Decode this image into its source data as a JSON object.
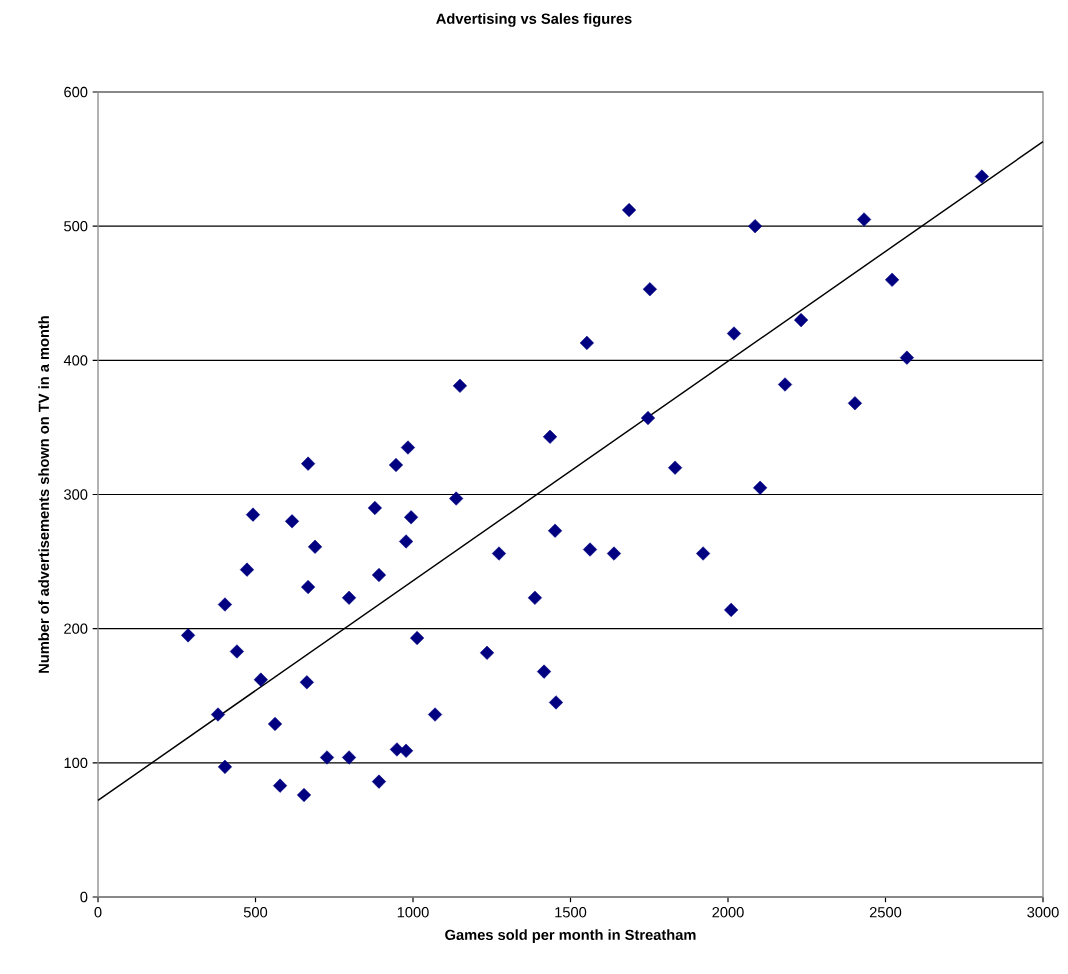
{
  "chart_data": {
    "type": "scatter",
    "title": "Advertising vs Sales figures",
    "xlabel": "Games sold per month in Streatham",
    "ylabel": "Number of advertisements shown on TV in a month",
    "xlim": [
      0,
      3000
    ],
    "xticks": [
      0,
      500,
      1000,
      1500,
      2000,
      2500,
      3000
    ],
    "ylim": [
      0,
      600
    ],
    "yticks": [
      0,
      100,
      200,
      300,
      400,
      500,
      600
    ],
    "grid": "y",
    "series": [
      {
        "color": "#000080",
        "marker": "diamond",
        "x": [
          286,
          403,
          492,
          473,
          441,
          517,
          381,
          403,
          562,
          578,
          654,
          663,
          667,
          616,
          689,
          727,
          797,
          797,
          879,
          892,
          892,
          978,
          994,
          949,
          978,
          1013,
          1070,
          1137,
          1273,
          1235,
          1387,
          1451,
          1416,
          1454,
          667,
          946,
          984,
          1149,
          1435,
          1686,
          2086,
          2432,
          2806,
          1752,
          2521,
          1552,
          2019,
          2232,
          2568,
          2181,
          2403,
          1746,
          1832,
          2102,
          1562,
          1638,
          1921,
          2010
        ],
        "values": [
          195,
          218,
          285,
          244,
          183,
          162,
          136,
          97,
          129,
          83,
          76,
          160,
          231,
          280,
          261,
          104,
          223,
          104,
          290,
          240,
          86,
          265,
          283,
          110,
          109,
          193,
          136,
          297,
          256,
          182,
          223,
          273,
          168,
          145,
          323,
          322,
          335,
          381,
          343,
          512,
          500,
          505,
          537,
          453,
          460,
          413,
          420,
          430,
          402,
          382,
          368,
          357,
          320,
          305,
          259,
          256,
          256,
          214
        ]
      },
      {
        "type": "line",
        "color": "#000000",
        "x": [
          0,
          3000
        ],
        "values": [
          72,
          563
        ]
      }
    ]
  }
}
